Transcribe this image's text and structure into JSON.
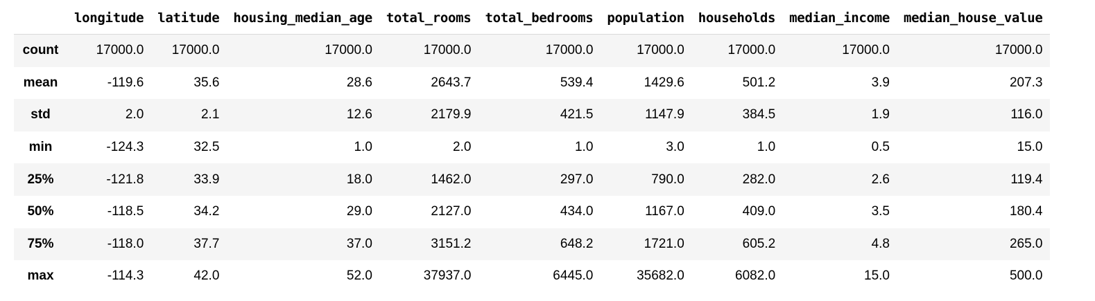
{
  "dataframe": {
    "index_header": "",
    "columns": [
      "longitude",
      "latitude",
      "housing_median_age",
      "total_rooms",
      "total_bedrooms",
      "population",
      "households",
      "median_income",
      "median_house_value"
    ],
    "rows": [
      {
        "label": "count",
        "values": [
          "17000.0",
          "17000.0",
          "17000.0",
          "17000.0",
          "17000.0",
          "17000.0",
          "17000.0",
          "17000.0",
          "17000.0"
        ]
      },
      {
        "label": "mean",
        "values": [
          "-119.6",
          "35.6",
          "28.6",
          "2643.7",
          "539.4",
          "1429.6",
          "501.2",
          "3.9",
          "207.3"
        ]
      },
      {
        "label": "std",
        "values": [
          "2.0",
          "2.1",
          "12.6",
          "2179.9",
          "421.5",
          "1147.9",
          "384.5",
          "1.9",
          "116.0"
        ]
      },
      {
        "label": "min",
        "values": [
          "-124.3",
          "32.5",
          "1.0",
          "2.0",
          "1.0",
          "3.0",
          "1.0",
          "0.5",
          "15.0"
        ]
      },
      {
        "label": "25%",
        "values": [
          "-121.8",
          "33.9",
          "18.0",
          "1462.0",
          "297.0",
          "790.0",
          "282.0",
          "2.6",
          "119.4"
        ]
      },
      {
        "label": "50%",
        "values": [
          "-118.5",
          "34.2",
          "29.0",
          "2127.0",
          "434.0",
          "1167.0",
          "409.0",
          "3.5",
          "180.4"
        ]
      },
      {
        "label": "75%",
        "values": [
          "-118.0",
          "37.7",
          "37.0",
          "3151.2",
          "648.2",
          "1721.0",
          "605.2",
          "4.8",
          "265.0"
        ]
      },
      {
        "label": "max",
        "values": [
          "-114.3",
          "42.0",
          "52.0",
          "37937.0",
          "6445.0",
          "35682.0",
          "6082.0",
          "15.0",
          "500.0"
        ]
      }
    ]
  }
}
